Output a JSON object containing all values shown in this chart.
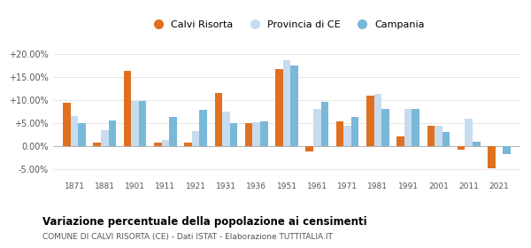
{
  "years": [
    1871,
    1881,
    1901,
    1911,
    1921,
    1931,
    1936,
    1951,
    1961,
    1971,
    1981,
    1991,
    2001,
    2011,
    2021
  ],
  "calvi_risorta": [
    9.5,
    0.7,
    16.3,
    0.8,
    0.8,
    11.5,
    5.0,
    16.8,
    -1.2,
    5.3,
    11.0,
    2.2,
    4.4,
    -0.7,
    -4.8
  ],
  "provincia_ce": [
    6.5,
    3.4,
    9.8,
    1.3,
    3.2,
    7.5,
    5.2,
    18.7,
    8.0,
    4.5,
    11.3,
    8.0,
    4.5,
    6.0,
    null
  ],
  "campania": [
    5.0,
    5.5,
    9.8,
    6.4,
    7.8,
    5.0,
    5.4,
    17.5,
    9.7,
    6.3,
    8.0,
    8.0,
    3.0,
    1.0,
    -1.8
  ],
  "color_calvi": "#e07020",
  "color_provincia": "#c8dcf0",
  "color_campania": "#7ab8d8",
  "title": "Variazione percentuale della popolazione ai censimenti",
  "subtitle": "COMUNE DI CALVI RISORTA (CE) - Dati ISTAT - Elaborazione TUTTITALIA.IT",
  "legend_labels": [
    "Calvi Risorta",
    "Provincia di CE",
    "Campania"
  ],
  "ylim": [
    -7.0,
    22.0
  ],
  "yticks": [
    -5,
    0,
    5,
    10,
    15,
    20
  ],
  "bar_width": 0.25,
  "figsize": [
    6.0,
    2.8
  ],
  "dpi": 100
}
